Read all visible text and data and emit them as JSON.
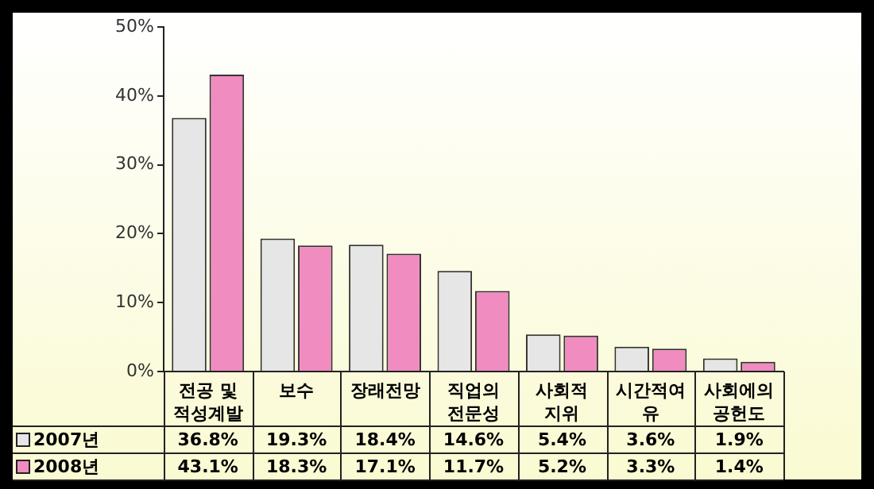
{
  "chart_data": {
    "type": "bar",
    "categories": [
      "전공 및\n적성계발",
      "보수",
      "장래전망",
      "직업의\n전문성",
      "사회적\n지위",
      "시간적여\n유",
      "사회에의\n공헌도"
    ],
    "series": [
      {
        "name": "2007년",
        "color": "#e6e6e6",
        "values": [
          36.8,
          19.3,
          18.4,
          14.6,
          5.4,
          3.6,
          1.9
        ],
        "value_labels": [
          "36.8%",
          "19.3%",
          "18.4%",
          "14.6%",
          "5.4%",
          "3.6%",
          "1.9%"
        ]
      },
      {
        "name": "2008년",
        "color": "#f08cc0",
        "values": [
          43.1,
          18.3,
          17.1,
          11.7,
          5.2,
          3.3,
          1.4
        ],
        "value_labels": [
          "43.1%",
          "18.3%",
          "17.1%",
          "11.7%",
          "5.2%",
          "3.3%",
          "1.4%"
        ]
      }
    ],
    "ylim": [
      0,
      50
    ],
    "yticks": [
      {
        "value": 0,
        "label": "0%"
      },
      {
        "value": 10,
        "label": "10%"
      },
      {
        "value": 20,
        "label": "20%"
      },
      {
        "value": 30,
        "label": "30%"
      },
      {
        "value": 40,
        "label": "40%"
      },
      {
        "value": 50,
        "label": "50%"
      }
    ],
    "grid": false,
    "legend": "bottom"
  }
}
